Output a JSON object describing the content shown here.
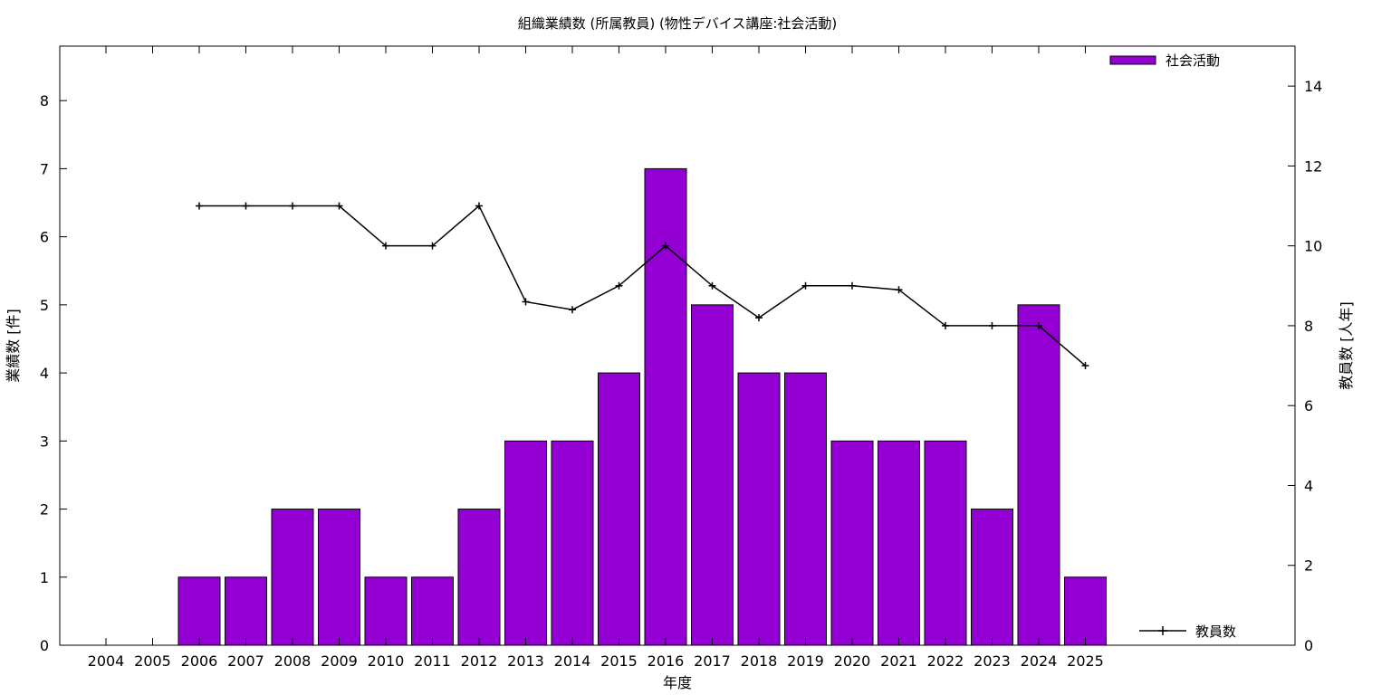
{
  "chart_data": {
    "type": "bar",
    "title": "組織業績数 (所属教員) (物性デバイス講座:社会活動)",
    "xlabel": "年度",
    "ylabel": "業績数 [件]",
    "y2label": "教員数 [人年]",
    "categories": [
      "2004",
      "2005",
      "2006",
      "2007",
      "2008",
      "2009",
      "2010",
      "2011",
      "2012",
      "2013",
      "2014",
      "2015",
      "2016",
      "2017",
      "2018",
      "2019",
      "2020",
      "2021",
      "2022",
      "2023",
      "2024",
      "2025"
    ],
    "series": [
      {
        "name": "社会活動",
        "kind": "bar",
        "axis": "left",
        "color": "#9400d3",
        "values": [
          0,
          0,
          1,
          1,
          2,
          2,
          1,
          1,
          2,
          3,
          3,
          4,
          7,
          5,
          4,
          4,
          3,
          3,
          3,
          2,
          5,
          1
        ]
      },
      {
        "name": "教員数",
        "kind": "line",
        "axis": "right",
        "color": "#000000",
        "values": [
          null,
          null,
          11,
          11,
          11,
          11,
          10,
          10,
          11,
          8.6,
          8.4,
          9,
          10,
          9,
          8.2,
          9,
          9,
          8.9,
          8,
          8,
          8,
          7
        ]
      }
    ],
    "ylim": [
      0,
      8.8
    ],
    "yticks": [
      0,
      1,
      2,
      3,
      4,
      5,
      6,
      7,
      8
    ],
    "y2lim": [
      0,
      15
    ],
    "y2ticks": [
      0,
      2,
      4,
      6,
      8,
      10,
      12,
      14
    ],
    "grid": false,
    "legend": [
      "top-right",
      "bottom-right"
    ]
  }
}
